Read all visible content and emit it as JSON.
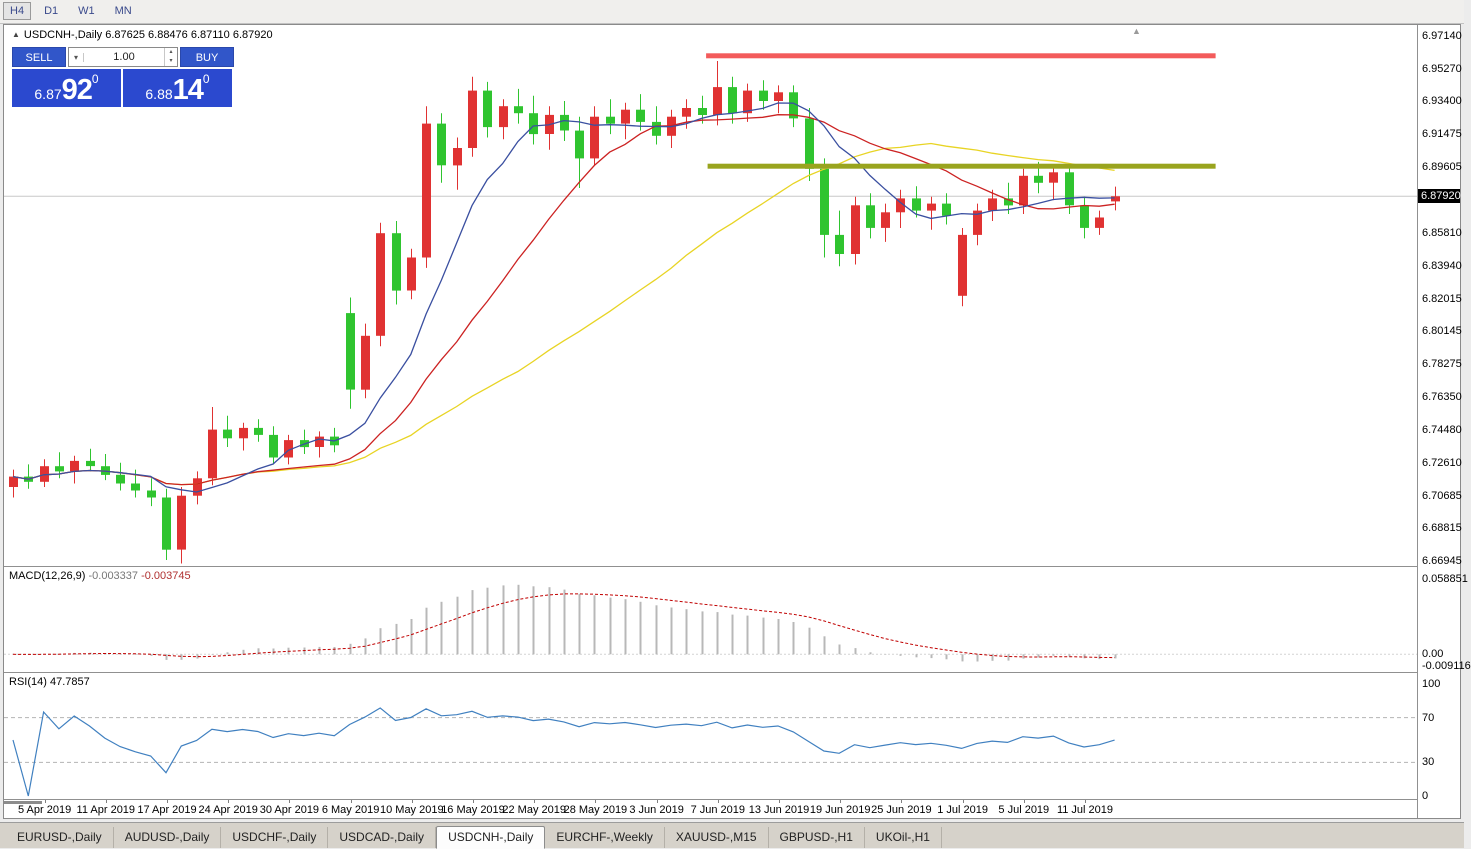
{
  "toolbar": {
    "timeframes": [
      {
        "label": "H4",
        "active": true
      },
      {
        "label": "D1",
        "active": false
      },
      {
        "label": "W1",
        "active": false
      },
      {
        "label": "MN",
        "active": false
      }
    ]
  },
  "chart": {
    "title_line": "USDCNH-,Daily 6.87625 6.88476 6.87110 6.87920",
    "collapse_icon": "▲",
    "shift_marker_icon": "▲"
  },
  "trade_panel": {
    "sell_label": "SELL",
    "buy_label": "BUY",
    "volume": "1.00",
    "sell_price": {
      "small": "6.87",
      "big": "92",
      "sup": "0"
    },
    "buy_price": {
      "small": "6.88",
      "big": "14",
      "sup": "0"
    }
  },
  "macd_panel": {
    "label": "MACD(12,26,9)",
    "value_main": "-0.003337",
    "value_signal": "-0.003745",
    "axis": [
      {
        "v": 0.058851,
        "t": "0.058851"
      },
      {
        "v": 0.0,
        "t": "0.00"
      },
      {
        "v": -0.009116,
        "t": "-0.009116"
      }
    ]
  },
  "rsi_panel": {
    "label": "RSI(14)",
    "value": "47.7857",
    "axis": [
      100,
      70,
      30,
      0
    ]
  },
  "tabs": [
    {
      "label": "EURUSD-,Daily",
      "active": false
    },
    {
      "label": "AUDUSD-,Daily",
      "active": false
    },
    {
      "label": "USDCHF-,Daily",
      "active": false
    },
    {
      "label": "USDCAD-,Daily",
      "active": false
    },
    {
      "label": "USDCNH-,Daily",
      "active": true
    },
    {
      "label": "EURCHF-,Weekly",
      "active": false
    },
    {
      "label": "XAUUSD-,M15",
      "active": false
    },
    {
      "label": "GBPUSD-,H1",
      "active": false
    },
    {
      "label": "UKOil-,H1",
      "active": false
    }
  ],
  "colors": {
    "panel_blue": "#2b49cf",
    "button_blue": "#3156c9"
  },
  "chart_data": {
    "type": "candlestick",
    "symbol": "USDCNH-",
    "timeframe": "Daily",
    "current_price": 6.8792,
    "up_color": "#e03232",
    "down_color": "#2fc42f",
    "price_axis": [
      6.9714,
      6.9527,
      6.934,
      6.91475,
      6.89605,
      6.8581,
      6.8394,
      6.82015,
      6.80145,
      6.78275,
      6.7635,
      6.7448,
      6.7261,
      6.70685,
      6.68815,
      6.66945
    ],
    "candles": [
      [
        6.712,
        6.722,
        6.706,
        6.718
      ],
      [
        6.718,
        6.725,
        6.711,
        6.715
      ],
      [
        6.715,
        6.728,
        6.712,
        6.724
      ],
      [
        6.724,
        6.732,
        6.717,
        6.721
      ],
      [
        6.721,
        6.73,
        6.714,
        6.727
      ],
      [
        6.727,
        6.734,
        6.721,
        6.724
      ],
      [
        6.724,
        6.731,
        6.716,
        6.719
      ],
      [
        6.719,
        6.726,
        6.71,
        6.714
      ],
      [
        6.714,
        6.722,
        6.706,
        6.71
      ],
      [
        6.71,
        6.717,
        6.701,
        6.706
      ],
      [
        6.706,
        6.711,
        6.67,
        6.676
      ],
      [
        6.676,
        6.712,
        6.668,
        6.707
      ],
      [
        6.707,
        6.721,
        6.702,
        6.717
      ],
      [
        6.717,
        6.758,
        6.713,
        6.745
      ],
      [
        6.745,
        6.753,
        6.735,
        6.74
      ],
      [
        6.74,
        6.749,
        6.733,
        6.746
      ],
      [
        6.746,
        6.751,
        6.738,
        6.742
      ],
      [
        6.742,
        6.747,
        6.725,
        6.729
      ],
      [
        6.729,
        6.742,
        6.725,
        6.739
      ],
      [
        6.739,
        6.745,
        6.731,
        6.735
      ],
      [
        6.735,
        6.744,
        6.729,
        6.741
      ],
      [
        6.741,
        6.746,
        6.732,
        6.736
      ],
      [
        6.812,
        6.821,
        6.757,
        6.768
      ],
      [
        6.768,
        6.806,
        6.763,
        6.799
      ],
      [
        6.799,
        6.864,
        6.793,
        6.858
      ],
      [
        6.858,
        6.865,
        6.817,
        6.825
      ],
      [
        6.825,
        6.849,
        6.82,
        6.844
      ],
      [
        6.844,
        6.931,
        6.838,
        6.921
      ],
      [
        6.921,
        6.927,
        6.887,
        6.897
      ],
      [
        6.897,
        6.913,
        6.883,
        6.907
      ],
      [
        6.907,
        6.948,
        6.902,
        6.94
      ],
      [
        6.94,
        6.945,
        6.913,
        6.919
      ],
      [
        6.919,
        6.935,
        6.912,
        6.931
      ],
      [
        6.931,
        6.941,
        6.921,
        6.927
      ],
      [
        6.927,
        6.937,
        6.909,
        6.915
      ],
      [
        6.915,
        6.931,
        6.906,
        6.926
      ],
      [
        6.926,
        6.934,
        6.911,
        6.917
      ],
      [
        6.917,
        6.925,
        6.884,
        6.901
      ],
      [
        6.901,
        6.931,
        6.897,
        6.925
      ],
      [
        6.925,
        6.935,
        6.915,
        6.921
      ],
      [
        6.921,
        6.933,
        6.912,
        6.929
      ],
      [
        6.929,
        6.938,
        6.917,
        6.922
      ],
      [
        6.922,
        6.931,
        6.909,
        6.914
      ],
      [
        6.914,
        6.929,
        6.907,
        6.925
      ],
      [
        6.925,
        6.935,
        6.918,
        6.93
      ],
      [
        6.93,
        6.937,
        6.921,
        6.926
      ],
      [
        6.926,
        6.957,
        6.92,
        6.942
      ],
      [
        6.942,
        6.948,
        6.921,
        6.927
      ],
      [
        6.927,
        6.944,
        6.922,
        6.94
      ],
      [
        6.94,
        6.946,
        6.929,
        6.934
      ],
      [
        6.934,
        6.943,
        6.927,
        6.939
      ],
      [
        6.939,
        6.943,
        6.919,
        6.924
      ],
      [
        6.924,
        6.93,
        6.888,
        6.895
      ],
      [
        6.895,
        6.901,
        6.844,
        6.857
      ],
      [
        6.857,
        6.871,
        6.839,
        6.846
      ],
      [
        6.846,
        6.879,
        6.84,
        6.874
      ],
      [
        6.874,
        6.881,
        6.855,
        6.861
      ],
      [
        6.861,
        6.875,
        6.853,
        6.87
      ],
      [
        6.87,
        6.883,
        6.861,
        6.878
      ],
      [
        6.878,
        6.885,
        6.867,
        6.871
      ],
      [
        6.871,
        6.879,
        6.86,
        6.875
      ],
      [
        6.875,
        6.881,
        6.863,
        6.868
      ],
      [
        6.822,
        6.861,
        6.816,
        6.857
      ],
      [
        6.857,
        6.875,
        6.851,
        6.871
      ],
      [
        6.871,
        6.883,
        6.865,
        6.878
      ],
      [
        6.878,
        6.887,
        6.869,
        6.874
      ],
      [
        6.874,
        6.895,
        6.869,
        6.891
      ],
      [
        6.891,
        6.899,
        6.881,
        6.887
      ],
      [
        6.887,
        6.897,
        6.877,
        6.893
      ],
      [
        6.893,
        6.898,
        6.869,
        6.874
      ],
      [
        6.874,
        6.879,
        6.855,
        6.861
      ],
      [
        6.861,
        6.871,
        6.857,
        6.867
      ],
      [
        6.87625,
        6.88476,
        6.8711,
        6.8792
      ]
    ],
    "date_labels": [
      {
        "i": 2,
        "t": "5 Apr 2019"
      },
      {
        "i": 6,
        "t": "11 Apr 2019"
      },
      {
        "i": 10,
        "t": "17 Apr 2019"
      },
      {
        "i": 14,
        "t": "24 Apr 2019"
      },
      {
        "i": 18,
        "t": "30 Apr 2019"
      },
      {
        "i": 22,
        "t": "6 May 2019"
      },
      {
        "i": 26,
        "t": "10 May 2019"
      },
      {
        "i": 30,
        "t": "16 May 2019"
      },
      {
        "i": 34,
        "t": "22 May 2019"
      },
      {
        "i": 38,
        "t": "28 May 2019"
      },
      {
        "i": 42,
        "t": "3 Jun 2019"
      },
      {
        "i": 46,
        "t": "7 Jun 2019"
      },
      {
        "i": 50,
        "t": "13 Jun 2019"
      },
      {
        "i": 54,
        "t": "19 Jun 2019"
      },
      {
        "i": 58,
        "t": "25 Jun 2019"
      },
      {
        "i": 62,
        "t": "1 Jul 2019"
      },
      {
        "i": 66,
        "t": "5 Jul 2019"
      },
      {
        "i": 70,
        "t": "11 Jul 2019"
      }
    ],
    "ma_lines": [
      {
        "name": "ma-fast-line",
        "period": 8,
        "color": "#3a4fa0"
      },
      {
        "name": "ma-mid-line",
        "period": 16,
        "color": "#cc2222"
      },
      {
        "name": "ma-slow-line",
        "period": 34,
        "color": "#e8d424"
      }
    ],
    "hlines": [
      {
        "name": "resistance-line",
        "price": 6.96,
        "i1": 45.3,
        "i2": 78.6,
        "width": 5,
        "color": "#f35b5b"
      },
      {
        "name": "support-line",
        "price": 6.8965,
        "i1": 45.4,
        "i2": 78.6,
        "width": 5,
        "color": "#99a41e"
      }
    ],
    "macd": {
      "fast": 12,
      "slow": 26,
      "signal": 9,
      "axis_max": 0.058851,
      "axis_min": -0.009116,
      "bar_color": "#b8b8b8",
      "signal_color": "#c00000"
    },
    "rsi": {
      "period": 14,
      "levels": [
        70,
        30
      ],
      "line_color": "#4080c0"
    }
  }
}
